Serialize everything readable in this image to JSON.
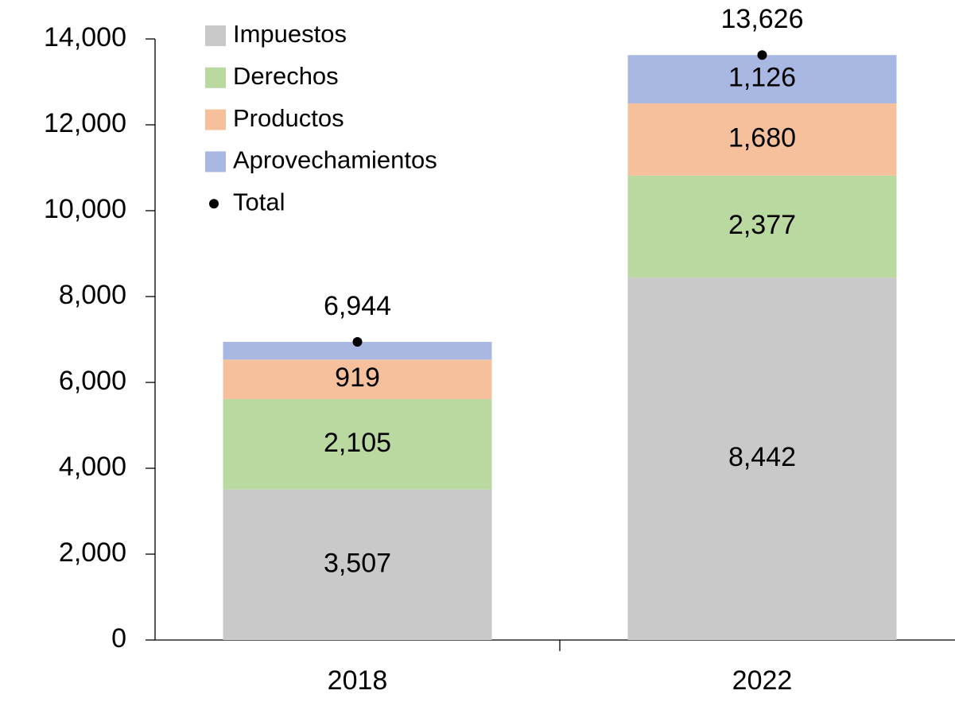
{
  "chart_data": {
    "type": "stacked_bar",
    "categories": [
      "2018",
      "2022"
    ],
    "series": [
      {
        "name": "Impuestos",
        "color": "#c9c9c9",
        "values": [
          3507,
          8442
        ],
        "value_labels": [
          "3,507",
          "8,442"
        ]
      },
      {
        "name": "Derechos",
        "color": "#b9d9a1",
        "values": [
          2105,
          2377
        ],
        "value_labels": [
          "2,105",
          "2,377"
        ]
      },
      {
        "name": "Productos",
        "color": "#f6c09d",
        "values": [
          919,
          1680
        ],
        "value_labels": [
          "919",
          "1,680"
        ]
      },
      {
        "name": "Aprovechamientos",
        "color": "#a8b8e2",
        "values": [
          413,
          1126
        ],
        "value_labels": [
          null,
          "1,126"
        ]
      }
    ],
    "total": {
      "name": "Total",
      "color": "#000000",
      "values": [
        6944,
        13626
      ],
      "value_labels": [
        "6,944",
        "13,626"
      ]
    },
    "ylim": [
      0,
      14000
    ],
    "yticks": [
      0,
      {
        "value": 2000,
        "label": "2,000"
      },
      {
        "value": 4000,
        "label": "4,000"
      },
      {
        "value": 6000,
        "label": "6,000"
      },
      {
        "value": 8000,
        "label": "8,000"
      },
      {
        "value": 10000,
        "label": "10,000"
      },
      {
        "value": 12000,
        "label": "12,000"
      },
      {
        "value": 14000,
        "label": "14,000"
      }
    ],
    "legend": "upper left"
  }
}
